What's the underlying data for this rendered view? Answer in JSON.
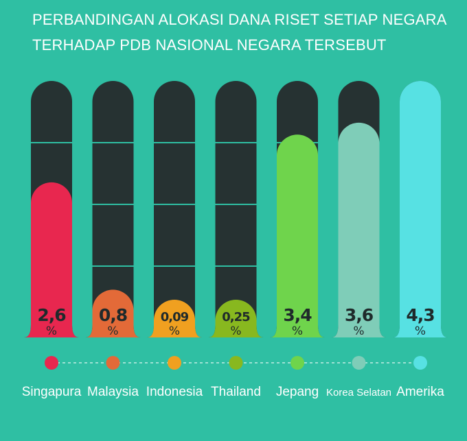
{
  "title_lines": [
    "PERBANDINGAN ALOKASI DANA RISET SETIAP NEGARA",
    "TERHADAP PDB NASIONAL NEGARA TERSEBUT"
  ],
  "chart_data": {
    "type": "bar",
    "title": "PERBANDINGAN ALOKASI DANA RISET SETIAP NEGARA TERHADAP PDB NASIONAL NEGARA TERSEBUT",
    "categories": [
      "Singapura",
      "Malaysia",
      "Indonesia",
      "Thailand",
      "Jepang",
      "Korea Selatan",
      "Amerika"
    ],
    "values": [
      2.6,
      0.8,
      0.09,
      0.25,
      3.4,
      3.6,
      4.3
    ],
    "value_labels": [
      "2,6",
      "0,8",
      "0,09",
      "0,25",
      "3,4",
      "3,6",
      "4,3"
    ],
    "unit": "%",
    "ylim": [
      0,
      4.3
    ],
    "grid": true,
    "legend": "none",
    "colors": [
      "#e8274f",
      "#e36a38",
      "#f0a020",
      "#88b81f",
      "#6fd44c",
      "#7fcdb8",
      "#57e1e3"
    ],
    "track_color": "#263232",
    "background": "#2fbfa3"
  }
}
